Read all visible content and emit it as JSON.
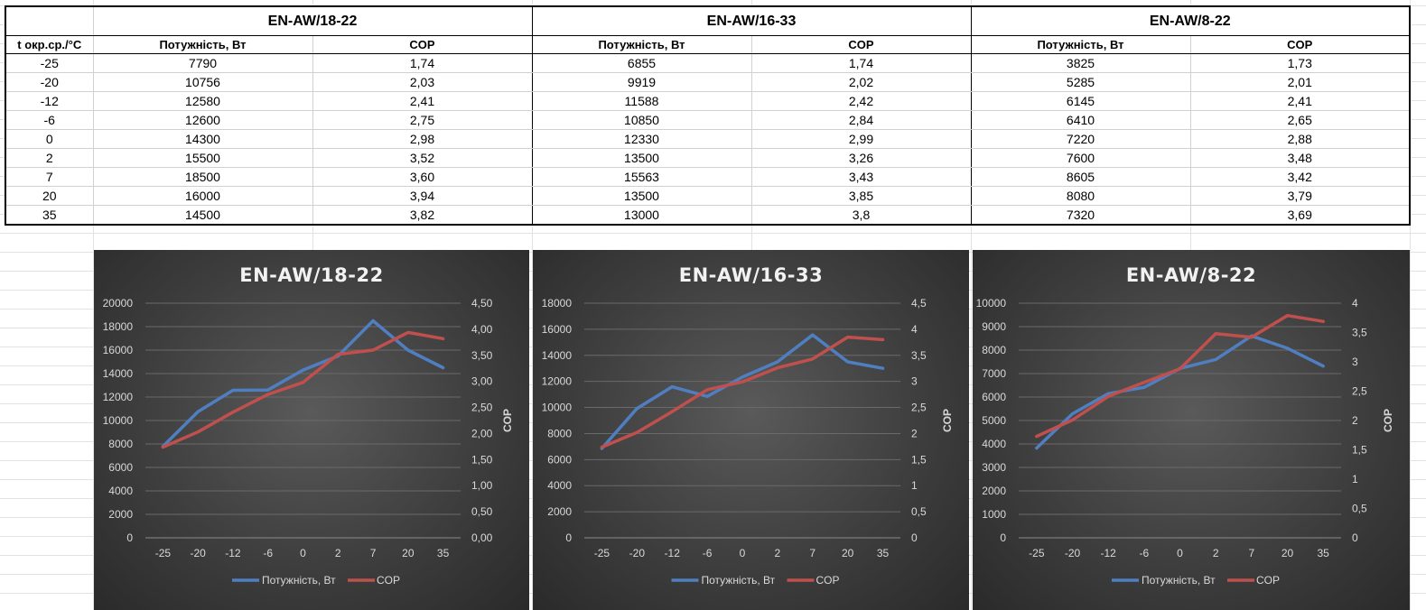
{
  "table": {
    "temp_header": "t окр.ср./°C",
    "models": [
      "EN-AW/18-22",
      "EN-AW/16-33",
      "EN-AW/8-22"
    ],
    "power_header": "Потужність, Вт",
    "cop_header": "COP",
    "rows": [
      {
        "t": "-25",
        "cells": [
          "7790",
          "1,74",
          "6855",
          "1,74",
          "3825",
          "1,73"
        ]
      },
      {
        "t": "-20",
        "cells": [
          "10756",
          "2,03",
          "9919",
          "2,02",
          "5285",
          "2,01"
        ]
      },
      {
        "t": "-12",
        "cells": [
          "12580",
          "2,41",
          "11588",
          "2,42",
          "6145",
          "2,41"
        ]
      },
      {
        "t": "-6",
        "cells": [
          "12600",
          "2,75",
          "10850",
          "2,84",
          "6410",
          "2,65"
        ]
      },
      {
        "t": "0",
        "cells": [
          "14300",
          "2,98",
          "12330",
          "2,99",
          "7220",
          "2,88"
        ]
      },
      {
        "t": "2",
        "cells": [
          "15500",
          "3,52",
          "13500",
          "3,26",
          "7600",
          "3,48"
        ]
      },
      {
        "t": "7",
        "cells": [
          "18500",
          "3,60",
          "15563",
          "3,43",
          "8605",
          "3,42"
        ]
      },
      {
        "t": "20",
        "cells": [
          "16000",
          "3,94",
          "13500",
          "3,85",
          "8080",
          "3,79"
        ]
      },
      {
        "t": "35",
        "cells": [
          "14500",
          "3,82",
          "13000",
          "3,8",
          "7320",
          "3,69"
        ]
      }
    ]
  },
  "colors": {
    "power": "#4f7fc0",
    "cop": "#c0504d",
    "chart_text": "#d9d9d9",
    "title_text": "#f2f2f2"
  },
  "chart_data": [
    {
      "type": "line",
      "title": "EN-AW/18-22",
      "categories": [
        "-25",
        "-20",
        "-12",
        "-6",
        "0",
        "2",
        "7",
        "20",
        "35"
      ],
      "series": [
        {
          "name": "Потужність, Вт",
          "axis": "left",
          "values": [
            7790,
            10756,
            12580,
            12600,
            14300,
            15500,
            18500,
            16000,
            14500
          ]
        },
        {
          "name": "COP",
          "axis": "right",
          "values": [
            1.74,
            2.03,
            2.41,
            2.75,
            2.98,
            3.52,
            3.6,
            3.94,
            3.82
          ]
        }
      ],
      "ylim_left": [
        0,
        20000
      ],
      "yticks_left": [
        "0",
        "2000",
        "4000",
        "6000",
        "8000",
        "10000",
        "12000",
        "14000",
        "16000",
        "18000",
        "20000"
      ],
      "ylim_right": [
        0,
        4.5
      ],
      "yticks_right": [
        "0,00",
        "0,50",
        "1,00",
        "1,50",
        "2,00",
        "2,50",
        "3,00",
        "3,50",
        "4,00",
        "4,50"
      ],
      "ylabel_right": "COP",
      "grid": true,
      "legend": "bottom"
    },
    {
      "type": "line",
      "title": "EN-AW/16-33",
      "categories": [
        "-25",
        "-20",
        "-12",
        "-6",
        "0",
        "2",
        "7",
        "20",
        "35"
      ],
      "series": [
        {
          "name": "Потужність, Вт",
          "axis": "left",
          "values": [
            6855,
            9919,
            11588,
            10850,
            12330,
            13500,
            15563,
            13500,
            13000
          ]
        },
        {
          "name": "COP",
          "axis": "right",
          "values": [
            1.74,
            2.02,
            2.42,
            2.84,
            2.99,
            3.26,
            3.43,
            3.85,
            3.8
          ]
        }
      ],
      "ylim_left": [
        0,
        18000
      ],
      "yticks_left": [
        "0",
        "2000",
        "4000",
        "6000",
        "8000",
        "10000",
        "12000",
        "14000",
        "16000",
        "18000"
      ],
      "ylim_right": [
        0,
        4.5
      ],
      "yticks_right": [
        "0",
        "0,5",
        "1",
        "1,5",
        "2",
        "2,5",
        "3",
        "3,5",
        "4",
        "4,5"
      ],
      "ylabel_right": "COP",
      "grid": true,
      "legend": "bottom"
    },
    {
      "type": "line",
      "title": "EN-AW/8-22",
      "categories": [
        "-25",
        "-20",
        "-12",
        "-6",
        "0",
        "2",
        "7",
        "20",
        "35"
      ],
      "series": [
        {
          "name": "Потужність, Вт",
          "axis": "left",
          "values": [
            3825,
            5285,
            6145,
            6410,
            7220,
            7600,
            8605,
            8080,
            7320
          ]
        },
        {
          "name": "COP",
          "axis": "right",
          "values": [
            1.73,
            2.01,
            2.41,
            2.65,
            2.88,
            3.48,
            3.42,
            3.79,
            3.69
          ]
        }
      ],
      "ylim_left": [
        0,
        10000
      ],
      "yticks_left": [
        "0",
        "1000",
        "2000",
        "3000",
        "4000",
        "5000",
        "6000",
        "7000",
        "8000",
        "9000",
        "10000"
      ],
      "ylim_right": [
        0,
        4
      ],
      "yticks_right": [
        "0",
        "0,5",
        "1",
        "1,5",
        "2",
        "2,5",
        "3",
        "3,5",
        "4"
      ],
      "ylabel_right": "COP",
      "grid": true,
      "legend": "bottom"
    }
  ]
}
